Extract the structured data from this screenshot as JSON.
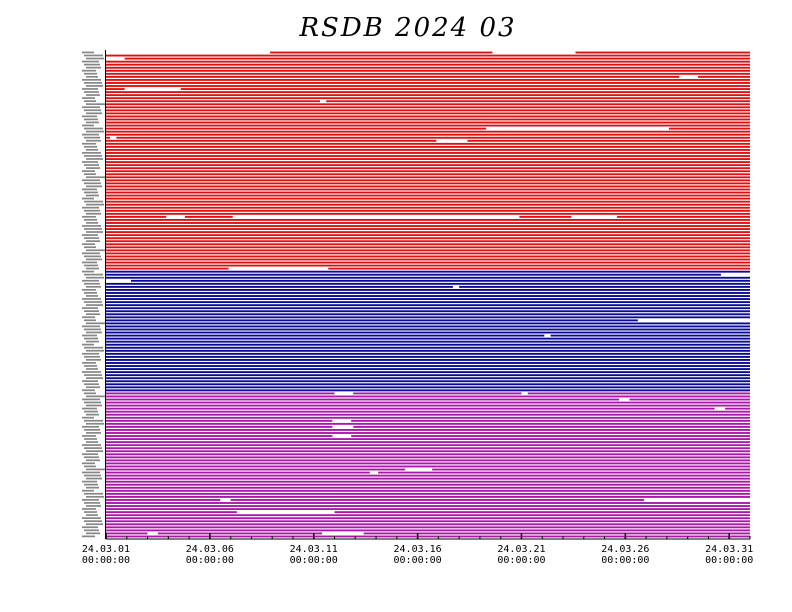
{
  "chart_data": {
    "type": "bar",
    "title": "RSDB  2024  03",
    "xlabel": "",
    "ylabel": "",
    "x_range": [
      "24.03.01 00:00:00",
      "24.04.01 00:00:00"
    ],
    "x_tick_labels": [
      {
        "date": "24.03.01",
        "time": "00:00:00"
      },
      {
        "date": "24.03.06",
        "time": "00:00:00"
      },
      {
        "date": "24.03.11",
        "time": "00:00:00"
      },
      {
        "date": "24.03.16",
        "time": "00:00:00"
      },
      {
        "date": "24.03.21",
        "time": "00:00:00"
      },
      {
        "date": "24.03.26",
        "time": "00:00:00"
      },
      {
        "date": "24.03.31",
        "time": "00:00:00"
      }
    ],
    "x_tick_days": [
      0,
      5,
      10,
      15,
      20,
      25,
      30
    ],
    "total_days": 31,
    "grid": false,
    "legend": "none",
    "groups": [
      {
        "color": "#dd1111",
        "rows": 72
      },
      {
        "color": "#0a0a96",
        "rows": 40
      },
      {
        "color": "#aa18aa",
        "rows": 48
      }
    ],
    "gaps": [
      {
        "row": 0,
        "from": 0,
        "to": 7.9
      },
      {
        "row": 0,
        "from": 18.6,
        "to": 22.6
      },
      {
        "row": 2,
        "from": 0,
        "to": 0.9
      },
      {
        "row": 8,
        "from": 27.6,
        "to": 28.5
      },
      {
        "row": 12,
        "from": 0.9,
        "to": 3.6
      },
      {
        "row": 16,
        "from": 10.3,
        "to": 10.6
      },
      {
        "row": 25,
        "from": 18.3,
        "to": 27.1
      },
      {
        "row": 28,
        "from": 0.2,
        "to": 0.5
      },
      {
        "row": 29,
        "from": 15.9,
        "to": 17.4
      },
      {
        "row": 54,
        "from": 2.9,
        "to": 3.8
      },
      {
        "row": 54,
        "from": 6.1,
        "to": 19.9
      },
      {
        "row": 54,
        "from": 22.4,
        "to": 24.6
      },
      {
        "row": 71,
        "from": 5.9,
        "to": 10.7
      },
      {
        "row": 73,
        "from": 29.6,
        "to": 31
      },
      {
        "row": 75,
        "from": 0,
        "to": 1.2
      },
      {
        "row": 77,
        "from": 16.7,
        "to": 17
      },
      {
        "row": 88,
        "from": 25.6,
        "to": 31
      },
      {
        "row": 93,
        "from": 21.1,
        "to": 21.4
      },
      {
        "row": 112,
        "from": 11.0,
        "to": 11.9
      },
      {
        "row": 112,
        "from": 20.0,
        "to": 20.3
      },
      {
        "row": 114,
        "from": 24.7,
        "to": 25.2
      },
      {
        "row": 117,
        "from": 29.3,
        "to": 29.8
      },
      {
        "row": 121,
        "from": 10.9,
        "to": 11.8
      },
      {
        "row": 123,
        "from": 10.9,
        "to": 11.9
      },
      {
        "row": 126,
        "from": 10.9,
        "to": 11.8
      },
      {
        "row": 137,
        "from": 14.4,
        "to": 15.7
      },
      {
        "row": 138,
        "from": 12.7,
        "to": 13.1
      },
      {
        "row": 147,
        "from": 5.5,
        "to": 6.0
      },
      {
        "row": 147,
        "from": 25.9,
        "to": 31
      },
      {
        "row": 151,
        "from": 6.3,
        "to": 11.0
      },
      {
        "row": 158,
        "from": 2.0,
        "to": 2.5
      },
      {
        "row": 158,
        "from": 10.4,
        "to": 12.4
      }
    ]
  }
}
